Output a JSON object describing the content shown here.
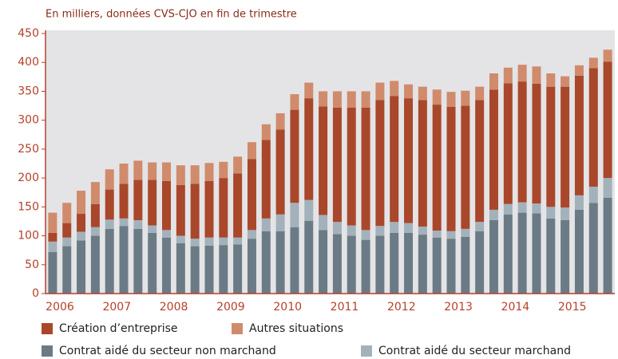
{
  "chart_data": {
    "type": "stacked_bar",
    "subtitle": "En milliers, données CVS-CJO en fin de trimestre",
    "categories": [
      "2006",
      null,
      null,
      null,
      "2007",
      null,
      null,
      null,
      "2008",
      null,
      null,
      null,
      "2009",
      null,
      null,
      null,
      "2010",
      null,
      null,
      null,
      "2011",
      null,
      null,
      null,
      "2012",
      null,
      null,
      null,
      "2013",
      null,
      null,
      null,
      "2014",
      null,
      null,
      null,
      "2015",
      null,
      null,
      null
    ],
    "series": [
      {
        "name": "Contrat aidé du secteur non marchand",
        "color": "#6b7b86",
        "values": [
          72,
          82,
          92,
          100,
          112,
          117,
          112,
          105,
          97,
          87,
          82,
          83,
          84,
          85,
          95,
          108,
          108,
          115,
          126,
          110,
          103,
          100,
          93,
          100,
          105,
          105,
          102,
          97,
          95,
          98,
          108,
          127,
          137,
          140,
          139,
          130,
          127,
          145,
          157,
          166
        ]
      },
      {
        "name": "Contrat aidé du secteur marchand",
        "color": "#a3b1bb",
        "values": [
          18,
          15,
          15,
          15,
          16,
          13,
          15,
          13,
          13,
          13,
          13,
          14,
          13,
          12,
          15,
          22,
          29,
          42,
          36,
          26,
          21,
          18,
          17,
          17,
          19,
          17,
          14,
          12,
          13,
          14,
          16,
          18,
          18,
          18,
          17,
          20,
          22,
          25,
          28,
          34
        ]
      },
      {
        "name": "Création d’entreprise",
        "color": "#a9472b",
        "values": [
          15,
          25,
          31,
          40,
          52,
          60,
          70,
          79,
          85,
          88,
          95,
          98,
          103,
          111,
          123,
          136,
          147,
          161,
          176,
          188,
          198,
          204,
          212,
          218,
          218,
          216,
          219,
          218,
          215,
          213,
          211,
          208,
          209,
          209,
          207,
          208,
          209,
          207,
          205,
          201
        ]
      },
      {
        "name": "Autres situations",
        "color": "#d08b6c",
        "values": [
          35,
          35,
          40,
          38,
          35,
          35,
          33,
          30,
          32,
          34,
          32,
          31,
          28,
          29,
          29,
          27,
          28,
          27,
          27,
          26,
          28,
          28,
          28,
          30,
          26,
          24,
          23,
          26,
          26,
          26,
          23,
          28,
          27,
          29,
          30,
          23,
          18,
          18,
          18,
          21
        ]
      }
    ],
    "ylim": [
      0,
      450
    ],
    "yticks": [
      0,
      50,
      100,
      150,
      200,
      250,
      300,
      350,
      400,
      450
    ]
  }
}
